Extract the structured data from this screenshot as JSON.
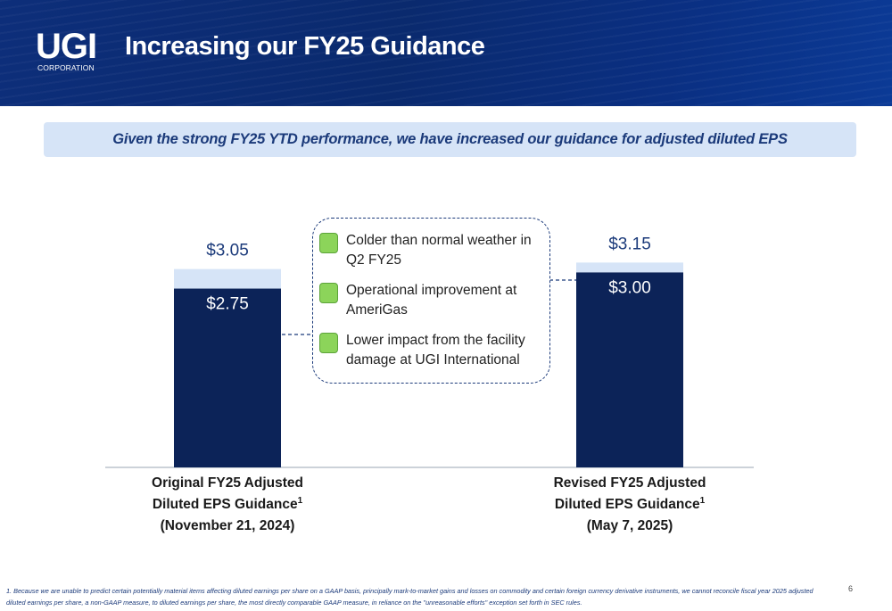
{
  "header": {
    "logo_mark": "UGI",
    "logo_sub": "CORPORATION",
    "title": "Increasing our FY25 Guidance"
  },
  "banner": {
    "text": "Given the strong FY25 YTD performance, we have increased our guidance for adjusted diluted EPS"
  },
  "callout": {
    "items": [
      {
        "icon": "check-box-icon",
        "text": "Colder than normal weather in Q2 FY25"
      },
      {
        "icon": "check-box-icon",
        "text": "Operational improvement at AmeriGas"
      },
      {
        "icon": "check-box-icon",
        "text": "Lower impact from the facility damage at UGI International"
      }
    ]
  },
  "chart_data": {
    "type": "bar",
    "stacked": true,
    "categories": [
      "Original FY25 Adjusted Diluted EPS Guidance (November 21, 2024)",
      "Revised FY25 Adjusted Diluted EPS Guidance (May 7, 2025)"
    ],
    "category_labels": [
      {
        "line1": "Original FY25 Adjusted",
        "line2": "Diluted EPS Guidance",
        "sup": "1",
        "line3": "(November 21, 2024)"
      },
      {
        "line1": "Revised FY25 Adjusted",
        "line2": "Diluted EPS Guidance",
        "sup": "1",
        "line3": "(May 7, 2025)"
      }
    ],
    "ranges": [
      {
        "low": 2.75,
        "high": 3.05,
        "low_label": "$2.75",
        "high_label": "$3.05"
      },
      {
        "low": 3.0,
        "high": 3.15,
        "low_label": "$3.00",
        "high_label": "$3.15"
      }
    ],
    "colors": {
      "low": "#0c2358",
      "range": "#d6e4f7",
      "label_dark": "#1b3a7a",
      "label_light": "#ffffff"
    },
    "ylim": [
      0,
      3.15
    ],
    "grid": false,
    "legend": "none"
  },
  "footnote": {
    "text": "1. Because we are unable to predict certain potentially material items affecting diluted earnings per share on a GAAP basis, principally mark-to-market gains and losses on commodity and certain foreign currency derivative instruments, we cannot reconcile fiscal year 2025 adjusted diluted earnings per share, a non-GAAP measure, to diluted earnings per share, the most directly comparable GAAP measure, in reliance on the \"unreasonable efforts\" exception set forth in SEC rules."
  },
  "page_number": "6"
}
